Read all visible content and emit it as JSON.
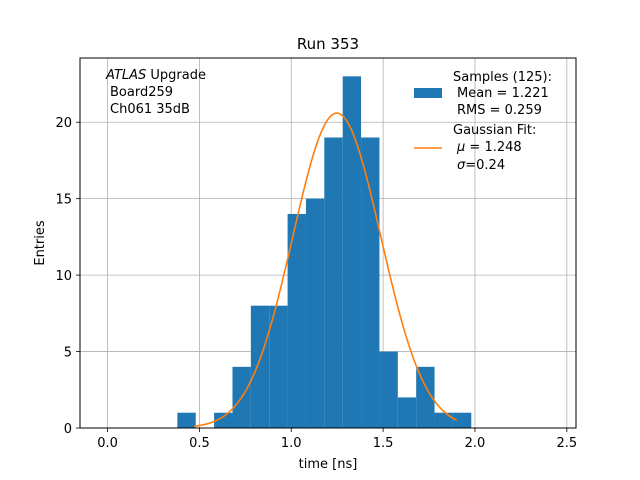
{
  "chart_data": {
    "type": "bar",
    "title": "Run 353",
    "xlabel": "time [ns]",
    "ylabel": "Entries",
    "xlim": [
      -0.15,
      2.55
    ],
    "ylim": [
      0,
      24.2
    ],
    "xticks": [
      0.0,
      0.5,
      1.0,
      1.5,
      2.0,
      2.5
    ],
    "xtick_labels": [
      "0.0",
      "0.5",
      "1.0",
      "1.5",
      "2.0",
      "2.5"
    ],
    "yticks": [
      0,
      5,
      10,
      15,
      20
    ],
    "ytick_labels": [
      "0",
      "5",
      "10",
      "15",
      "20"
    ],
    "grid": true,
    "legend_position": "top-right",
    "bar_color": "#1f77b4",
    "fit_color": "#ff7f0e",
    "annotation": {
      "line1_italic": "ATLAS",
      "line1_rest": " Upgrade",
      "line2": "Board259",
      "line3": "Ch061 35dB"
    },
    "histogram": {
      "bin_edges": [
        0.38,
        0.48,
        0.58,
        0.68,
        0.78,
        0.88,
        0.98,
        1.08,
        1.18,
        1.28,
        1.38,
        1.48,
        1.58,
        1.68,
        1.78,
        1.88,
        1.98
      ],
      "counts": [
        1,
        0,
        1,
        4,
        8,
        8,
        14,
        15,
        19,
        23,
        19,
        5,
        2,
        4,
        1,
        1
      ]
    },
    "fit": {
      "amplitude": 20.6,
      "mu": 1.248,
      "sigma": 0.24,
      "x_range": [
        0.47,
        1.9
      ]
    },
    "legend": {
      "samples_label": "Samples (125):",
      "samples_mean": "Mean = 1.221",
      "samples_rms": "RMS = 0.259",
      "fit_label": "Gaussian Fit:",
      "fit_mu_symbol": "μ",
      "fit_mu_value": " = 1.248",
      "fit_sigma_symbol": "σ",
      "fit_sigma_value": "=0.24"
    }
  }
}
